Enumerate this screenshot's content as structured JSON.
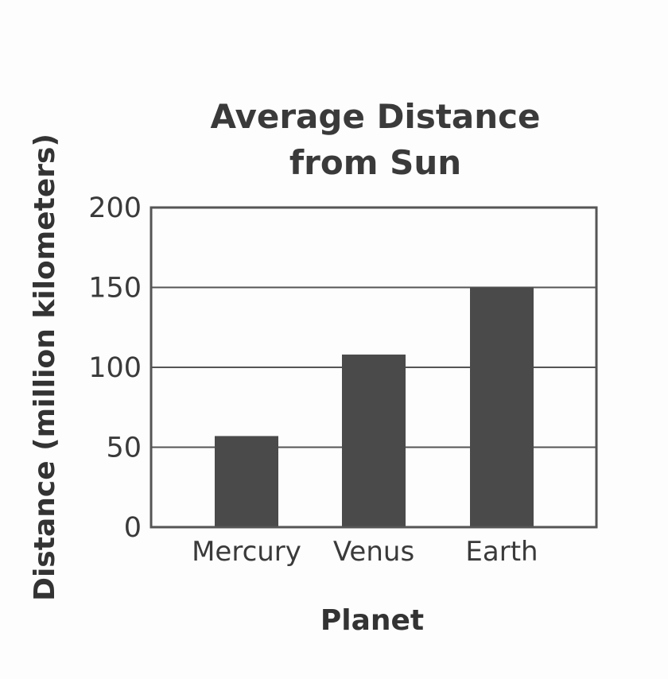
{
  "chart_data": {
    "type": "bar",
    "title": [
      "Average Distance",
      "from Sun"
    ],
    "xlabel": "Planet",
    "ylabel": "Distance (million kilometers)",
    "categories": [
      "Mercury",
      "Venus",
      "Earth"
    ],
    "values": [
      57,
      108,
      150
    ],
    "ylim": [
      0,
      200
    ],
    "yticks": [
      0,
      50,
      100,
      150,
      200
    ],
    "grid": true,
    "bar_color": "#4a4a4a",
    "grid_color": "#555555",
    "frame_color": "#555555"
  }
}
